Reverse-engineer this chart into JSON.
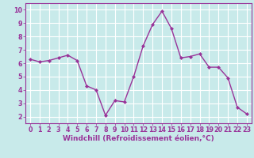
{
  "x": [
    0,
    1,
    2,
    3,
    4,
    5,
    6,
    7,
    8,
    9,
    10,
    11,
    12,
    13,
    14,
    15,
    16,
    17,
    18,
    19,
    20,
    21,
    22,
    23
  ],
  "y": [
    6.3,
    6.1,
    6.2,
    6.4,
    6.6,
    6.2,
    4.3,
    4.0,
    2.1,
    3.2,
    3.1,
    5.0,
    7.3,
    8.9,
    9.9,
    8.6,
    6.4,
    6.5,
    6.7,
    5.7,
    5.7,
    4.9,
    2.7,
    2.2
  ],
  "line_color": "#993399",
  "marker": "D",
  "marker_size": 2.0,
  "bg_color": "#c8eaea",
  "grid_color": "#ffffff",
  "xlabel": "Windchill (Refroidissement éolien,°C)",
  "xlim": [
    -0.5,
    23.5
  ],
  "ylim": [
    1.5,
    10.5
  ],
  "yticks": [
    2,
    3,
    4,
    5,
    6,
    7,
    8,
    9,
    10
  ],
  "xticks": [
    0,
    1,
    2,
    3,
    4,
    5,
    6,
    7,
    8,
    9,
    10,
    11,
    12,
    13,
    14,
    15,
    16,
    17,
    18,
    19,
    20,
    21,
    22,
    23
  ],
  "tick_color": "#993399",
  "label_color": "#993399",
  "spine_color": "#993399",
  "font_size_xlabel": 6.5,
  "font_size_ticks": 5.8,
  "line_width": 1.0,
  "xlabel_bold": true
}
